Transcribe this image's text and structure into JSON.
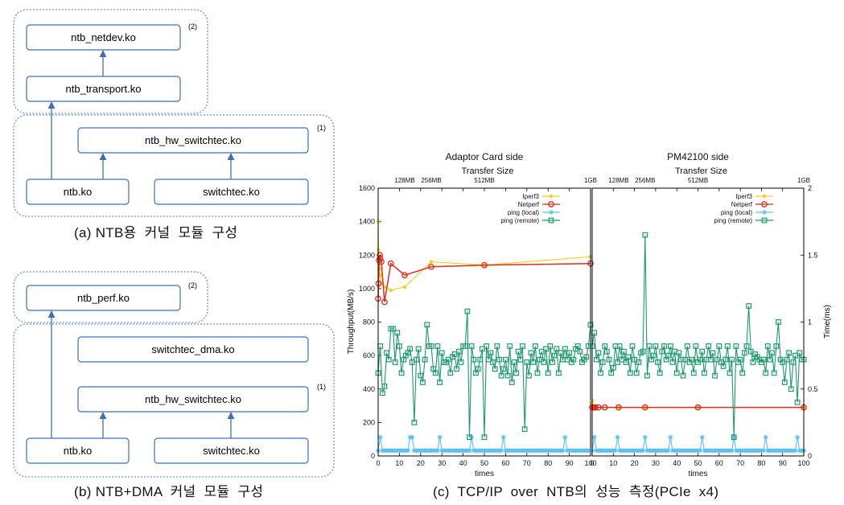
{
  "diagram_a": {
    "caption": "(a) NTB용  커널  모듈  구성",
    "group_top_marker": "(2)",
    "group_bottom_marker": "(1)",
    "modules": {
      "netdev": "ntb_netdev.ko",
      "transport": "ntb_transport.ko",
      "hw_switchtec": "ntb_hw_switchtec.ko",
      "ntb": "ntb.ko",
      "switchtec": "switchtec.ko"
    }
  },
  "diagram_b": {
    "caption": "(b) NTB+DMA  커널  모듈  구성",
    "group_top_marker": "(2)",
    "group_bottom_marker": "(1)",
    "modules": {
      "perf": "ntb_perf.ko",
      "switchtec_dma": "switchtec_dma.ko",
      "hw_switchtec": "ntb_hw_switchtec.ko",
      "ntb": "ntb.ko",
      "switchtec": "switchtec.ko"
    }
  },
  "chart_caption": "(c)  TCP/IP  over  NTB의  성능  측정(PCIe  x4)",
  "colors": {
    "box_border": "#3f6fb8",
    "group_border": "#6d93cf",
    "arrow": "#3f6fb8",
    "iperf3": "#f0d020",
    "netperf": "#dc2d1e",
    "ping_local": "#5cc0ef",
    "ping_remote": "#1d9a6c"
  },
  "chart_data": {
    "type": "line",
    "ylabel": "Throughput(MB/s)",
    "y2label": "Time(ms)",
    "xlabel": "times",
    "x2label": "Transfer Size",
    "xlim": [
      0,
      100
    ],
    "ylim": [
      0,
      1600
    ],
    "y2lim": [
      0,
      2
    ],
    "x_ticks": [
      0,
      10,
      20,
      30,
      40,
      50,
      60,
      70,
      80,
      90,
      100
    ],
    "y_ticks": [
      0,
      200,
      400,
      600,
      800,
      1000,
      1200,
      1400,
      1600
    ],
    "y2_ticks": [
      0,
      0.5,
      1,
      1.5,
      2
    ],
    "y2_tick_labels": [
      "0",
      "0.5",
      "1",
      "1.5",
      "2"
    ],
    "x2_ticks": [
      {
        "label": "128MB",
        "x": 12.5
      },
      {
        "label": "256MB",
        "x": 25
      },
      {
        "label": "512MB",
        "x": 50
      },
      {
        "label": "1GB",
        "x": 100
      }
    ],
    "legend": [
      "Iperf3",
      "Netperf",
      "ping (local)",
      "ping (remote)"
    ],
    "legend_position": "top-right",
    "panels": [
      {
        "title": "Adaptor Card side",
        "series": [
          {
            "name": "Iperf3",
            "axis": "left",
            "marker": "dot",
            "x": [
              0,
              0.2,
              0.4,
              0.8,
              1,
              1.5,
              3,
              6,
              12.5,
              25,
              50,
              100
            ],
            "y": [
              1400,
              1230,
              1170,
              1120,
              1080,
              1030,
              1010,
              990,
              1010,
              1160,
              1140,
              1190
            ]
          },
          {
            "name": "Netperf",
            "axis": "left",
            "marker": "circle",
            "x": [
              0,
              0.2,
              0.4,
              0.8,
              1,
              1.5,
              3,
              6,
              12.5,
              25,
              50,
              100
            ],
            "y": [
              940,
              1030,
              1170,
              1200,
              1180,
              1160,
              920,
              1150,
              1080,
              1130,
              1140,
              1150
            ]
          },
          {
            "name": "ping (local)",
            "axis": "right",
            "marker": "star",
            "spikes_x": [
              1,
              15,
              16,
              29,
              44,
              59,
              88
            ],
            "base": 0.04,
            "spike": 0.14
          },
          {
            "name": "ping (remote)",
            "axis": "right",
            "marker": "square",
            "x": [
              0,
              1,
              2,
              3,
              4,
              5,
              6,
              7,
              8,
              9,
              10,
              11,
              12,
              13,
              14,
              15,
              16,
              17,
              18,
              19,
              20,
              21,
              22,
              23,
              24,
              25,
              26,
              27,
              28,
              29,
              30,
              31,
              32,
              33,
              34,
              35,
              36,
              37,
              38,
              39,
              40,
              41,
              42,
              43,
              44,
              45,
              46,
              47,
              48,
              49,
              50,
              51,
              52,
              53,
              54,
              55,
              56,
              57,
              58,
              59,
              60,
              61,
              62,
              63,
              64,
              65,
              66,
              67,
              68,
              69,
              70,
              71,
              72,
              73,
              74,
              75,
              76,
              77,
              78,
              79,
              80,
              81,
              82,
              83,
              84,
              85,
              86,
              87,
              88,
              89,
              90,
              91,
              92,
              93,
              94,
              95,
              96,
              97,
              98,
              99,
              100
            ],
            "y": [
              0.62,
              0.82,
              0.47,
              0.52,
              0.77,
              0.72,
              0.95,
              0.95,
              0.7,
              0.92,
              0.82,
              0.62,
              0.72,
              0.75,
              0.77,
              0.8,
              0.7,
              0.25,
              0.72,
              0.8,
              0.6,
              0.55,
              0.72,
              0.98,
              0.82,
              0.82,
              0.65,
              0.62,
              0.82,
              0.55,
              0.77,
              0.7,
              0.7,
              0.72,
              0.62,
              0.74,
              0.76,
              0.65,
              0.78,
              0.7,
              0.82,
              0.82,
              1.08,
              0.14,
              0.82,
              0.72,
              0.62,
              0.65,
              0.72,
              0.8,
              0.14,
              0.82,
              0.72,
              0.77,
              0.7,
              0.65,
              0.82,
              0.72,
              0.6,
              0.65,
              0.72,
              0.6,
              0.82,
              0.55,
              0.7,
              0.62,
              0.78,
              0.72,
              0.82,
              0.2,
              0.7,
              0.6,
              0.77,
              0.7,
              0.82,
              0.62,
              0.72,
              0.78,
              0.7,
              0.8,
              0.62,
              0.82,
              0.7,
              0.75,
              0.8,
              0.62,
              0.77,
              0.72,
              0.8,
              0.72,
              0.77,
              0.7,
              0.72,
              0.8,
              0.82,
              0.78,
              0.7,
              0.72,
              0.74,
              0.82,
              0.98
            ]
          }
        ]
      },
      {
        "title": "PM42100 side",
        "series": [
          {
            "name": "Iperf3",
            "axis": "left",
            "marker": "dot",
            "x": [
              0,
              0.5,
              1,
              12.5,
              25,
              50,
              100
            ],
            "y": [
              330,
              295,
              290,
              290,
              290,
              290,
              290
            ]
          },
          {
            "name": "Netperf",
            "axis": "left",
            "marker": "circle",
            "x": [
              0,
              0.5,
              1,
              1.5,
              3,
              6,
              12.5,
              25,
              50,
              100
            ],
            "y": [
              290,
              290,
              290,
              290,
              290,
              290,
              290,
              290,
              290,
              290
            ]
          },
          {
            "name": "ping (local)",
            "axis": "right",
            "marker": "star",
            "spikes_x": [
              1,
              12,
              25,
              37,
              52,
              67,
              82,
              97
            ],
            "base": 0.04,
            "spike": 0.14
          },
          {
            "name": "ping (remote)",
            "axis": "right",
            "marker": "square",
            "x": [
              0,
              1,
              2,
              3,
              4,
              5,
              6,
              7,
              8,
              9,
              10,
              11,
              12,
              13,
              14,
              15,
              16,
              17,
              18,
              19,
              20,
              21,
              22,
              23,
              24,
              25,
              26,
              27,
              28,
              29,
              30,
              31,
              32,
              33,
              34,
              35,
              36,
              37,
              38,
              39,
              40,
              41,
              42,
              43,
              44,
              45,
              46,
              47,
              48,
              49,
              50,
              51,
              52,
              53,
              54,
              55,
              56,
              57,
              58,
              59,
              60,
              61,
              62,
              63,
              64,
              65,
              66,
              67,
              68,
              69,
              70,
              71,
              72,
              73,
              74,
              75,
              76,
              77,
              78,
              79,
              80,
              81,
              82,
              83,
              84,
              85,
              86,
              87,
              88,
              89,
              90,
              91,
              92,
              93,
              94,
              95,
              96,
              97,
              98,
              99,
              100
            ],
            "y": [
              0.82,
              0.92,
              0.72,
              0.77,
              0.62,
              0.7,
              0.82,
              0.78,
              0.72,
              0.62,
              0.66,
              0.82,
              0.7,
              0.82,
              0.72,
              0.78,
              0.7,
              0.74,
              0.62,
              0.82,
              0.72,
              0.62,
              0.7,
              0.77,
              0.78,
              1.65,
              0.6,
              0.82,
              0.72,
              0.75,
              0.82,
              0.7,
              0.62,
              0.78,
              0.82,
              0.72,
              0.75,
              0.82,
              0.7,
              0.78,
              0.62,
              0.77,
              0.72,
              0.6,
              0.72,
              0.82,
              0.7,
              0.72,
              0.62,
              0.82,
              0.7,
              0.72,
              0.78,
              0.62,
              0.72,
              0.82,
              0.72,
              0.77,
              0.6,
              0.72,
              0.82,
              0.7,
              0.67,
              0.72,
              0.82,
              0.62,
              0.72,
              0.14,
              0.82,
              0.7,
              0.72,
              0.62,
              0.77,
              0.82,
              1.12,
              0.78,
              0.7,
              0.76,
              0.74,
              0.72,
              0.7,
              0.72,
              0.62,
              0.82,
              0.72,
              0.77,
              0.62,
              0.82,
              1.0,
              0.72,
              0.7,
              0.55,
              0.72,
              0.77,
              0.5,
              0.7,
              0.75,
              0.4,
              0.77,
              0.72,
              0.72
            ]
          }
        ]
      }
    ]
  }
}
